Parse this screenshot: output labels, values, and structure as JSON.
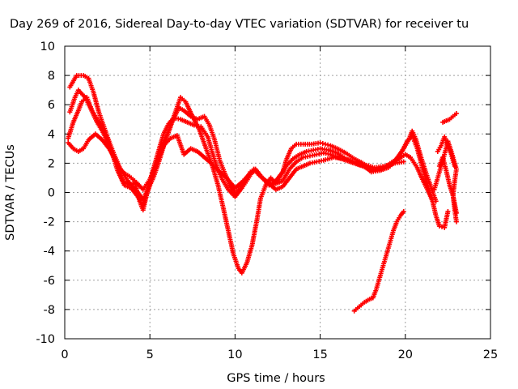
{
  "chart_data": {
    "type": "scatter",
    "title": "Day 269 of 2016, Sidereal Day-to-day VTEC variation (SDTVAR) for receiver tu",
    "xlabel": "GPS time / hours",
    "ylabel": "SDTVAR / TECUs",
    "xlim": [
      0,
      25
    ],
    "ylim": [
      -10,
      10
    ],
    "x_ticks": [
      0,
      5,
      10,
      15,
      20,
      25
    ],
    "y_ticks": [
      -10,
      -8,
      -6,
      -4,
      -2,
      0,
      2,
      4,
      6,
      8,
      10
    ],
    "grid": true,
    "legend": "none",
    "marker": "plus",
    "color": "#ff0000",
    "series": [
      {
        "points": [
          [
            0.2,
            3.7
          ],
          [
            0.5,
            4.8
          ],
          [
            0.8,
            5.6
          ],
          [
            1.0,
            6.2
          ],
          [
            1.3,
            6.5
          ],
          [
            1.6,
            5.6
          ],
          [
            2.0,
            4.8
          ],
          [
            2.4,
            4.0
          ],
          [
            2.8,
            2.6
          ],
          [
            3.2,
            1.7
          ],
          [
            3.5,
            1.3
          ],
          [
            3.8,
            1.1
          ],
          [
            4.1,
            0.8
          ],
          [
            4.4,
            -0.6
          ],
          [
            4.6,
            -1.2
          ],
          [
            4.9,
            0.3
          ],
          [
            5.2,
            1.6
          ],
          [
            5.5,
            2.8
          ],
          [
            5.8,
            4.0
          ],
          [
            6.1,
            4.7
          ],
          [
            6.4,
            5.1
          ],
          [
            6.8,
            5.0
          ],
          [
            7.2,
            4.8
          ],
          [
            7.6,
            4.6
          ],
          [
            8.0,
            4.5
          ],
          [
            8.4,
            3.8
          ],
          [
            8.8,
            2.2
          ],
          [
            9.2,
            1.0
          ],
          [
            9.6,
            0.2
          ],
          [
            10.0,
            -0.3
          ],
          [
            10.4,
            0.3
          ],
          [
            10.8,
            1.0
          ],
          [
            11.1,
            1.6
          ],
          [
            11.4,
            1.2
          ],
          [
            11.8,
            0.8
          ],
          [
            12.2,
            0.5
          ],
          [
            12.6,
            1.0
          ],
          [
            13.0,
            1.8
          ],
          [
            13.4,
            2.3
          ],
          [
            13.8,
            2.6
          ],
          [
            14.2,
            2.8
          ],
          [
            14.6,
            2.9
          ],
          [
            15.0,
            3.0
          ],
          [
            15.5,
            2.9
          ],
          [
            16.0,
            2.7
          ],
          [
            16.5,
            2.3
          ],
          [
            17.0,
            2.0
          ],
          [
            17.5,
            1.8
          ],
          [
            18.0,
            1.5
          ],
          [
            18.5,
            1.6
          ],
          [
            19.0,
            1.9
          ],
          [
            19.5,
            2.3
          ],
          [
            19.8,
            2.8
          ],
          [
            20.1,
            3.5
          ],
          [
            20.4,
            3.9
          ],
          [
            20.7,
            3.0
          ],
          [
            21.0,
            1.7
          ],
          [
            21.3,
            0.5
          ],
          [
            21.6,
            -0.6
          ],
          [
            21.8,
            -1.6
          ],
          [
            22.0,
            -2.3
          ],
          [
            22.3,
            -2.4
          ],
          [
            22.5,
            -1.3
          ]
        ]
      },
      {
        "points": [
          [
            0.3,
            5.5
          ],
          [
            0.6,
            6.5
          ],
          [
            0.8,
            7.0
          ],
          [
            1.2,
            6.5
          ],
          [
            1.5,
            5.8
          ],
          [
            1.9,
            4.8
          ],
          [
            2.3,
            4.0
          ],
          [
            2.7,
            3.0
          ],
          [
            3.1,
            1.5
          ],
          [
            3.5,
            0.5
          ],
          [
            3.9,
            0.3
          ],
          [
            4.3,
            -0.3
          ],
          [
            4.6,
            -0.9
          ],
          [
            5.0,
            0.5
          ],
          [
            5.3,
            1.5
          ],
          [
            5.7,
            3.2
          ],
          [
            6.1,
            4.2
          ],
          [
            6.5,
            5.5
          ],
          [
            6.8,
            6.5
          ],
          [
            7.1,
            6.2
          ],
          [
            7.5,
            5.2
          ],
          [
            7.9,
            4.3
          ],
          [
            8.3,
            3.0
          ],
          [
            8.7,
            1.7
          ],
          [
            9.0,
            0.5
          ],
          [
            9.3,
            -1.0
          ],
          [
            9.6,
            -2.6
          ],
          [
            9.9,
            -4.2
          ],
          [
            10.2,
            -5.2
          ],
          [
            10.4,
            -5.5
          ],
          [
            10.7,
            -4.8
          ],
          [
            11.0,
            -3.6
          ],
          [
            11.3,
            -1.8
          ],
          [
            11.5,
            -0.4
          ],
          [
            11.8,
            0.5
          ],
          [
            12.1,
            1.0
          ],
          [
            12.4,
            0.6
          ],
          [
            12.8,
            0.8
          ],
          [
            13.2,
            1.6
          ],
          [
            13.6,
            2.1
          ],
          [
            14.0,
            2.4
          ],
          [
            14.4,
            2.5
          ],
          [
            14.8,
            2.6
          ],
          [
            15.2,
            2.7
          ],
          [
            15.6,
            2.6
          ],
          [
            16.0,
            2.4
          ],
          [
            16.5,
            2.2
          ],
          [
            17.0,
            2.0
          ],
          [
            17.6,
            1.8
          ],
          [
            18.0,
            1.4
          ],
          [
            18.5,
            1.5
          ],
          [
            19.0,
            1.8
          ],
          [
            19.5,
            2.2
          ],
          [
            20.0,
            2.6
          ],
          [
            20.3,
            2.4
          ],
          [
            20.7,
            1.7
          ],
          [
            21.0,
            0.9
          ],
          [
            21.3,
            0.2
          ],
          [
            21.6,
            -0.6
          ]
        ]
      },
      {
        "points": [
          [
            0.2,
            3.4
          ],
          [
            0.5,
            3.0
          ],
          [
            0.8,
            2.8
          ],
          [
            1.1,
            3.0
          ],
          [
            1.4,
            3.6
          ],
          [
            1.8,
            4.0
          ],
          [
            2.2,
            3.6
          ],
          [
            2.6,
            3.0
          ],
          [
            3.0,
            2.2
          ],
          [
            3.4,
            0.8
          ],
          [
            3.8,
            0.5
          ],
          [
            4.2,
            0.7
          ],
          [
            4.6,
            0.2
          ],
          [
            5.0,
            0.9
          ],
          [
            5.4,
            2.0
          ],
          [
            5.8,
            3.2
          ],
          [
            6.2,
            3.7
          ],
          [
            6.6,
            3.9
          ],
          [
            7.0,
            2.6
          ],
          [
            7.4,
            3.0
          ],
          [
            7.8,
            2.8
          ],
          [
            8.2,
            2.4
          ],
          [
            8.6,
            2.0
          ],
          [
            9.0,
            1.5
          ],
          [
            9.5,
            1.0
          ],
          [
            10.0,
            0.3
          ],
          [
            10.4,
            0.7
          ],
          [
            10.8,
            1.2
          ],
          [
            11.2,
            1.5
          ],
          [
            11.6,
            1.0
          ],
          [
            12.0,
            0.6
          ],
          [
            12.4,
            0.2
          ],
          [
            12.8,
            0.4
          ],
          [
            13.2,
            1.0
          ],
          [
            13.6,
            1.6
          ],
          [
            14.0,
            1.8
          ],
          [
            14.4,
            2.0
          ],
          [
            14.8,
            2.1
          ],
          [
            15.2,
            2.2
          ],
          [
            15.8,
            2.4
          ],
          [
            16.4,
            2.3
          ],
          [
            17.0,
            2.1
          ],
          [
            17.6,
            1.9
          ],
          [
            18.2,
            1.7
          ],
          [
            18.8,
            1.8
          ],
          [
            19.4,
            2.0
          ],
          [
            19.9,
            2.1
          ]
        ]
      },
      {
        "points": [
          [
            0.3,
            7.2
          ],
          [
            0.7,
            8.0
          ],
          [
            1.1,
            8.0
          ],
          [
            1.4,
            7.8
          ],
          [
            1.7,
            6.8
          ],
          [
            2.0,
            5.5
          ],
          [
            2.3,
            4.5
          ],
          [
            2.6,
            3.5
          ],
          [
            2.9,
            2.6
          ],
          [
            3.3,
            1.5
          ],
          [
            3.7,
            0.8
          ],
          [
            4.0,
            0.4
          ],
          [
            4.3,
            0.0
          ],
          [
            4.6,
            -0.5
          ],
          [
            4.9,
            0.3
          ],
          [
            5.2,
            1.0
          ],
          [
            5.5,
            2.0
          ],
          [
            5.9,
            3.5
          ],
          [
            6.3,
            4.8
          ],
          [
            6.7,
            5.8
          ],
          [
            7.0,
            5.6
          ],
          [
            7.4,
            5.2
          ],
          [
            7.8,
            5.0
          ],
          [
            8.2,
            5.2
          ],
          [
            8.5,
            4.6
          ],
          [
            8.8,
            3.6
          ],
          [
            9.1,
            2.2
          ],
          [
            9.4,
            1.3
          ],
          [
            9.7,
            0.5
          ],
          [
            10.0,
            0.0
          ],
          [
            10.3,
            0.3
          ],
          [
            10.6,
            0.8
          ],
          [
            10.9,
            1.4
          ],
          [
            11.2,
            1.6
          ],
          [
            11.6,
            1.0
          ],
          [
            12.0,
            0.5
          ],
          [
            12.4,
            0.8
          ],
          [
            12.8,
            1.4
          ],
          [
            13.0,
            2.2
          ],
          [
            13.3,
            3.0
          ],
          [
            13.6,
            3.3
          ],
          [
            14.0,
            3.3
          ],
          [
            14.5,
            3.3
          ],
          [
            15.0,
            3.4
          ],
          [
            15.3,
            3.3
          ],
          [
            15.6,
            3.2
          ],
          [
            16.0,
            3.0
          ],
          [
            16.5,
            2.7
          ],
          [
            17.0,
            2.3
          ],
          [
            17.5,
            2.0
          ],
          [
            18.0,
            1.6
          ],
          [
            18.5,
            1.5
          ],
          [
            19.0,
            1.7
          ],
          [
            19.3,
            2.0
          ],
          [
            19.6,
            2.5
          ],
          [
            19.9,
            3.0
          ],
          [
            20.2,
            3.6
          ],
          [
            20.4,
            4.2
          ],
          [
            20.6,
            3.7
          ],
          [
            20.9,
            2.5
          ],
          [
            21.2,
            1.4
          ],
          [
            21.5,
            0.4
          ],
          [
            21.8,
            -0.6
          ]
        ]
      },
      {
        "points": [
          [
            17.0,
            -8.1
          ],
          [
            17.3,
            -7.8
          ],
          [
            17.6,
            -7.5
          ],
          [
            17.9,
            -7.3
          ],
          [
            18.1,
            -7.2
          ],
          [
            18.3,
            -6.6
          ],
          [
            18.5,
            -5.8
          ],
          [
            18.7,
            -5.0
          ],
          [
            18.9,
            -4.2
          ],
          [
            19.1,
            -3.4
          ],
          [
            19.3,
            -2.6
          ],
          [
            19.5,
            -2.0
          ],
          [
            19.7,
            -1.6
          ],
          [
            19.9,
            -1.3
          ]
        ]
      },
      {
        "points": [
          [
            21.7,
            0.2
          ],
          [
            21.9,
            1.0
          ],
          [
            22.1,
            1.8
          ],
          [
            22.3,
            2.6
          ],
          [
            22.5,
            3.5
          ],
          [
            22.7,
            2.8
          ],
          [
            22.9,
            2.0
          ],
          [
            23.0,
            1.6
          ],
          [
            22.9,
            0.8
          ],
          [
            22.8,
            -0.2
          ],
          [
            22.9,
            -1.2
          ],
          [
            23.0,
            -2.0
          ]
        ]
      },
      {
        "points": [
          [
            22.2,
            4.8
          ],
          [
            22.4,
            4.9
          ],
          [
            22.6,
            5.0
          ],
          [
            22.8,
            5.2
          ],
          [
            23.0,
            5.4
          ]
        ]
      },
      {
        "points": [
          [
            22.0,
            1.8
          ],
          [
            22.2,
            2.4
          ],
          [
            22.4,
            1.5
          ],
          [
            22.6,
            0.5
          ],
          [
            22.8,
            -0.2
          ],
          [
            22.9,
            -0.8
          ],
          [
            23.0,
            -1.4
          ]
        ]
      },
      {
        "points": [
          [
            21.9,
            2.8
          ],
          [
            22.1,
            3.2
          ],
          [
            22.3,
            3.8
          ],
          [
            22.5,
            3.2
          ],
          [
            22.7,
            2.6
          ],
          [
            22.9,
            1.8
          ]
        ]
      }
    ]
  }
}
